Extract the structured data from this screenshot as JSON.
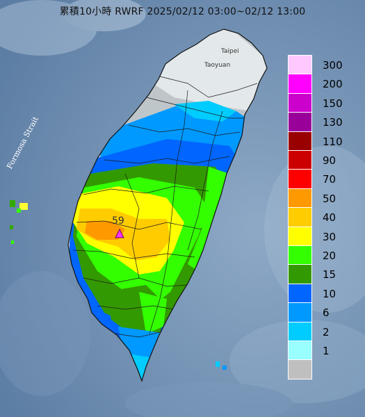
{
  "title": "累積10小時 RWRF 2025/02/12 03:00~02/12 13:00",
  "labels": {
    "strait": "Formosa Strait",
    "taipei": "Taipei",
    "taoyuan": "Taoyuan",
    "max_value": "59"
  },
  "legend": [
    {
      "label": "300",
      "color": "#ffc8ff"
    },
    {
      "label": "200",
      "color": "#ff00ff"
    },
    {
      "label": "150",
      "color": "#cc00cc"
    },
    {
      "label": "130",
      "color": "#990099"
    },
    {
      "label": "110",
      "color": "#990000"
    },
    {
      "label": "90",
      "color": "#cc0000"
    },
    {
      "label": "70",
      "color": "#ff0000"
    },
    {
      "label": "50",
      "color": "#ff9900"
    },
    {
      "label": "40",
      "color": "#ffcc00"
    },
    {
      "label": "30",
      "color": "#ffff00"
    },
    {
      "label": "20",
      "color": "#33ff00"
    },
    {
      "label": "15",
      "color": "#339900"
    },
    {
      "label": "10",
      "color": "#0066ff"
    },
    {
      "label": "6",
      "color": "#0099ff"
    },
    {
      "label": "2",
      "color": "#00ccff"
    },
    {
      "label": "1",
      "color": "#99ffff"
    },
    {
      "label": "",
      "color": "#bfbfbf"
    }
  ]
}
